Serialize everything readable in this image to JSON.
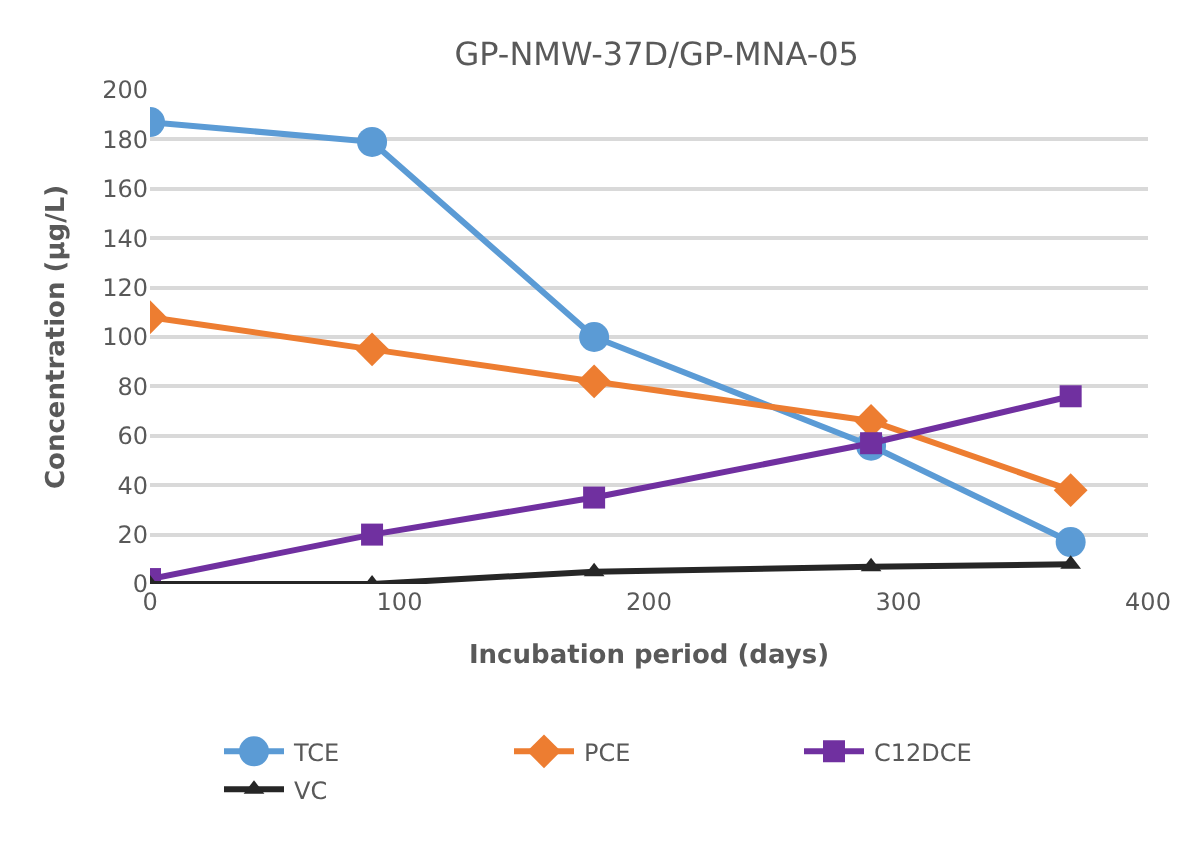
{
  "chart_data": {
    "type": "line",
    "title": "GP-NMW-37D/GP-MNA-05",
    "xlabel": "Incubation period (days)",
    "ylabel": "Concentration (µg/L)",
    "x": [
      0,
      89,
      178,
      289,
      369
    ],
    "series": [
      {
        "name": "TCE",
        "color": "#5b9bd5",
        "marker": "circle",
        "values": [
          187,
          179,
          100,
          56,
          17
        ]
      },
      {
        "name": "PCE",
        "color": "#ed7d31",
        "marker": "diamond",
        "values": [
          108,
          95,
          82,
          66,
          38
        ]
      },
      {
        "name": "C12DCE",
        "color": "#7030a0",
        "marker": "square",
        "values": [
          2,
          20,
          35,
          57,
          76
        ]
      },
      {
        "name": "VC",
        "color": "#262626",
        "marker": "triangle",
        "values": [
          0,
          0,
          5,
          7,
          8
        ]
      }
    ],
    "xlim": [
      0,
      400
    ],
    "xticks": [
      0,
      100,
      200,
      300,
      400
    ],
    "ylim": [
      0,
      200
    ],
    "yticks": [
      0,
      20,
      40,
      60,
      80,
      100,
      120,
      140,
      160,
      180,
      200
    ],
    "grid": "y",
    "legend": "bottom",
    "line_style": "solid"
  }
}
